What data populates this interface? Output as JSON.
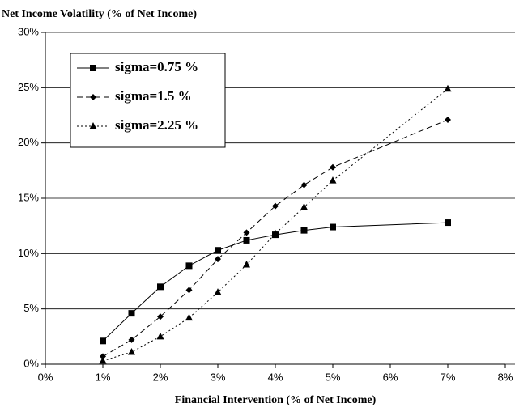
{
  "chart_data": {
    "type": "line",
    "title": "Net Income Volatility (% of Net Income)",
    "x_label": "Financial Intervention (% of Net Income)",
    "x": [
      1,
      1.5,
      2,
      2.5,
      3,
      3.5,
      4,
      4.5,
      5,
      7
    ],
    "series": [
      {
        "name": "sigma=0.75 %",
        "color": "#000000",
        "marker": "square",
        "dash": "solid",
        "values": [
          2.1,
          4.6,
          7.0,
          8.9,
          10.3,
          11.2,
          11.7,
          12.1,
          12.4,
          12.8
        ]
      },
      {
        "name": "sigma=1.5 %",
        "color": "#000000",
        "marker": "diamond",
        "dash": "dashed",
        "values": [
          0.7,
          2.2,
          4.3,
          6.7,
          9.5,
          11.9,
          14.3,
          16.2,
          17.8,
          22.1
        ]
      },
      {
        "name": "sigma=2.25 %",
        "color": "#000000",
        "marker": "triangle",
        "dash": "dotted",
        "values": [
          0.3,
          1.1,
          2.5,
          4.2,
          6.5,
          9.0,
          11.8,
          14.2,
          16.6,
          24.9
        ]
      }
    ],
    "xlim": [
      0,
      8
    ],
    "xticks": [
      {
        "value": 0,
        "label": "0%"
      },
      {
        "value": 1,
        "label": "1%"
      },
      {
        "value": 2,
        "label": "2%"
      },
      {
        "value": 3,
        "label": "3%"
      },
      {
        "value": 4,
        "label": "4%"
      },
      {
        "value": 5,
        "label": "5%"
      },
      {
        "value": 6,
        "label": "6%"
      },
      {
        "value": 7,
        "label": "7%"
      },
      {
        "value": 8,
        "label": "8%"
      }
    ],
    "ylim": [
      0,
      30
    ],
    "yticks": [
      {
        "value": 0,
        "label": "0%"
      },
      {
        "value": 5,
        "label": "5%"
      },
      {
        "value": 10,
        "label": "10%"
      },
      {
        "value": 15,
        "label": "15%"
      },
      {
        "value": 20,
        "label": "20%"
      },
      {
        "value": 25,
        "label": "25%"
      },
      {
        "value": 30,
        "label": "30%"
      }
    ],
    "grid": true,
    "legend": "upper left"
  }
}
